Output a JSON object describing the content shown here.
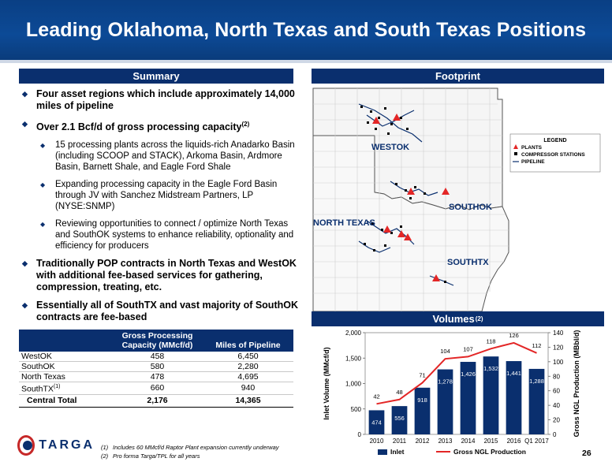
{
  "title": "Leading Oklahoma, North Texas and South Texas Positions",
  "summary": {
    "header": "Summary",
    "bullets": [
      {
        "text": "Four asset regions which include approximately 14,000 miles of pipeline",
        "sup": ""
      },
      {
        "text": "Over 2.1 Bcf/d of gross processing capacity",
        "sup": "(2)"
      }
    ],
    "sub_bullets": [
      "15 processing plants across the liquids-rich Anadarko Basin (including SCOOP and STACK), Arkoma Basin, Ardmore Basin, Barnett Shale, and Eagle Ford Shale",
      "Expanding processing capacity in the Eagle Ford Basin through JV with Sanchez Midstream Partners, LP (NYSE:SNMP)",
      "Reviewing opportunities to connect / optimize North Texas and SouthOK systems to enhance reliability, optionality and efficiency for producers"
    ],
    "bullets_after": [
      "Traditionally POP contracts in North Texas and WestOK with additional fee-based services for gathering, compression, treating, etc.",
      "Essentially all of SouthTX and vast majority of SouthOK contracts are fee-based"
    ]
  },
  "table": {
    "col1_header": "Gross Processing Capacity (MMcf/d)",
    "col2_header": "Miles of Pipeline",
    "rows": [
      {
        "name": "WestOK",
        "sup": "",
        "capacity": "458",
        "miles": "6,450"
      },
      {
        "name": "SouthOK",
        "sup": "",
        "capacity": "580",
        "miles": "2,280"
      },
      {
        "name": "North Texas",
        "sup": "",
        "capacity": "478",
        "miles": "4,695"
      },
      {
        "name": "SouthTX",
        "sup": "(1)",
        "capacity": "660",
        "miles": "940"
      }
    ],
    "total": {
      "name": "Central Total",
      "capacity": "2,176",
      "miles": "14,365"
    }
  },
  "footprint": {
    "header": "Footprint",
    "labels": {
      "westok": "WESTOK",
      "southok": "SOUTHOK",
      "northtexas": "NORTH TEXAS",
      "southtx": "SOUTHTX"
    },
    "legend": {
      "title": "LEGEND",
      "plants": "PLANTS",
      "compressor": "COMPRESSOR STATIONS",
      "pipeline": "PIPELINE"
    }
  },
  "volumes": {
    "header": "Volumes",
    "header_sup": "(2)"
  },
  "chart_data": {
    "type": "bar",
    "categories": [
      "2010",
      "2011",
      "2012",
      "2013",
      "2014",
      "2015",
      "2016",
      "Q1 2017"
    ],
    "series": [
      {
        "name": "Inlet",
        "type": "bar",
        "axis": "left",
        "values": [
          474,
          556,
          918,
          1278,
          1426,
          1532,
          1441,
          1288
        ]
      },
      {
        "name": "Gross NGL Production",
        "type": "line",
        "axis": "right",
        "values": [
          42,
          48,
          71,
          104,
          107,
          118,
          126,
          112
        ]
      }
    ],
    "ylabel": "Inlet Volume (MMcf/d)",
    "y2label": "Gross NGL Production (MBbl/d)",
    "ylim": [
      0,
      2000
    ],
    "y2lim": [
      0,
      140
    ],
    "yticks": [
      "0",
      "500",
      "1,000",
      "1,500",
      "2,000"
    ],
    "y2ticks": [
      "0",
      "20",
      "40",
      "60",
      "80",
      "100",
      "120",
      "140"
    ],
    "bar_labels": [
      "474",
      "556",
      "918",
      "1,278",
      "1,426",
      "1,532",
      "1,441",
      "1,288"
    ],
    "line_labels": [
      "42",
      "48",
      "71",
      "104",
      "107",
      "118",
      "126",
      "112"
    ],
    "legend_position": "bottom",
    "colors": {
      "bar": "#0a2f6e",
      "line": "#e32626"
    }
  },
  "logo_text": "TARGA",
  "footnotes": [
    {
      "num": "(1)",
      "text": "Includes 60 MMcf/d Raptor Plant expansion currently underway"
    },
    {
      "num": "(2)",
      "text": "Pro forma Targa/TPL for all years"
    }
  ],
  "page_number": "26",
  "colors": {
    "navy": "#0a2f6e",
    "red": "#e32626",
    "title_blue": "#0c4a96"
  }
}
